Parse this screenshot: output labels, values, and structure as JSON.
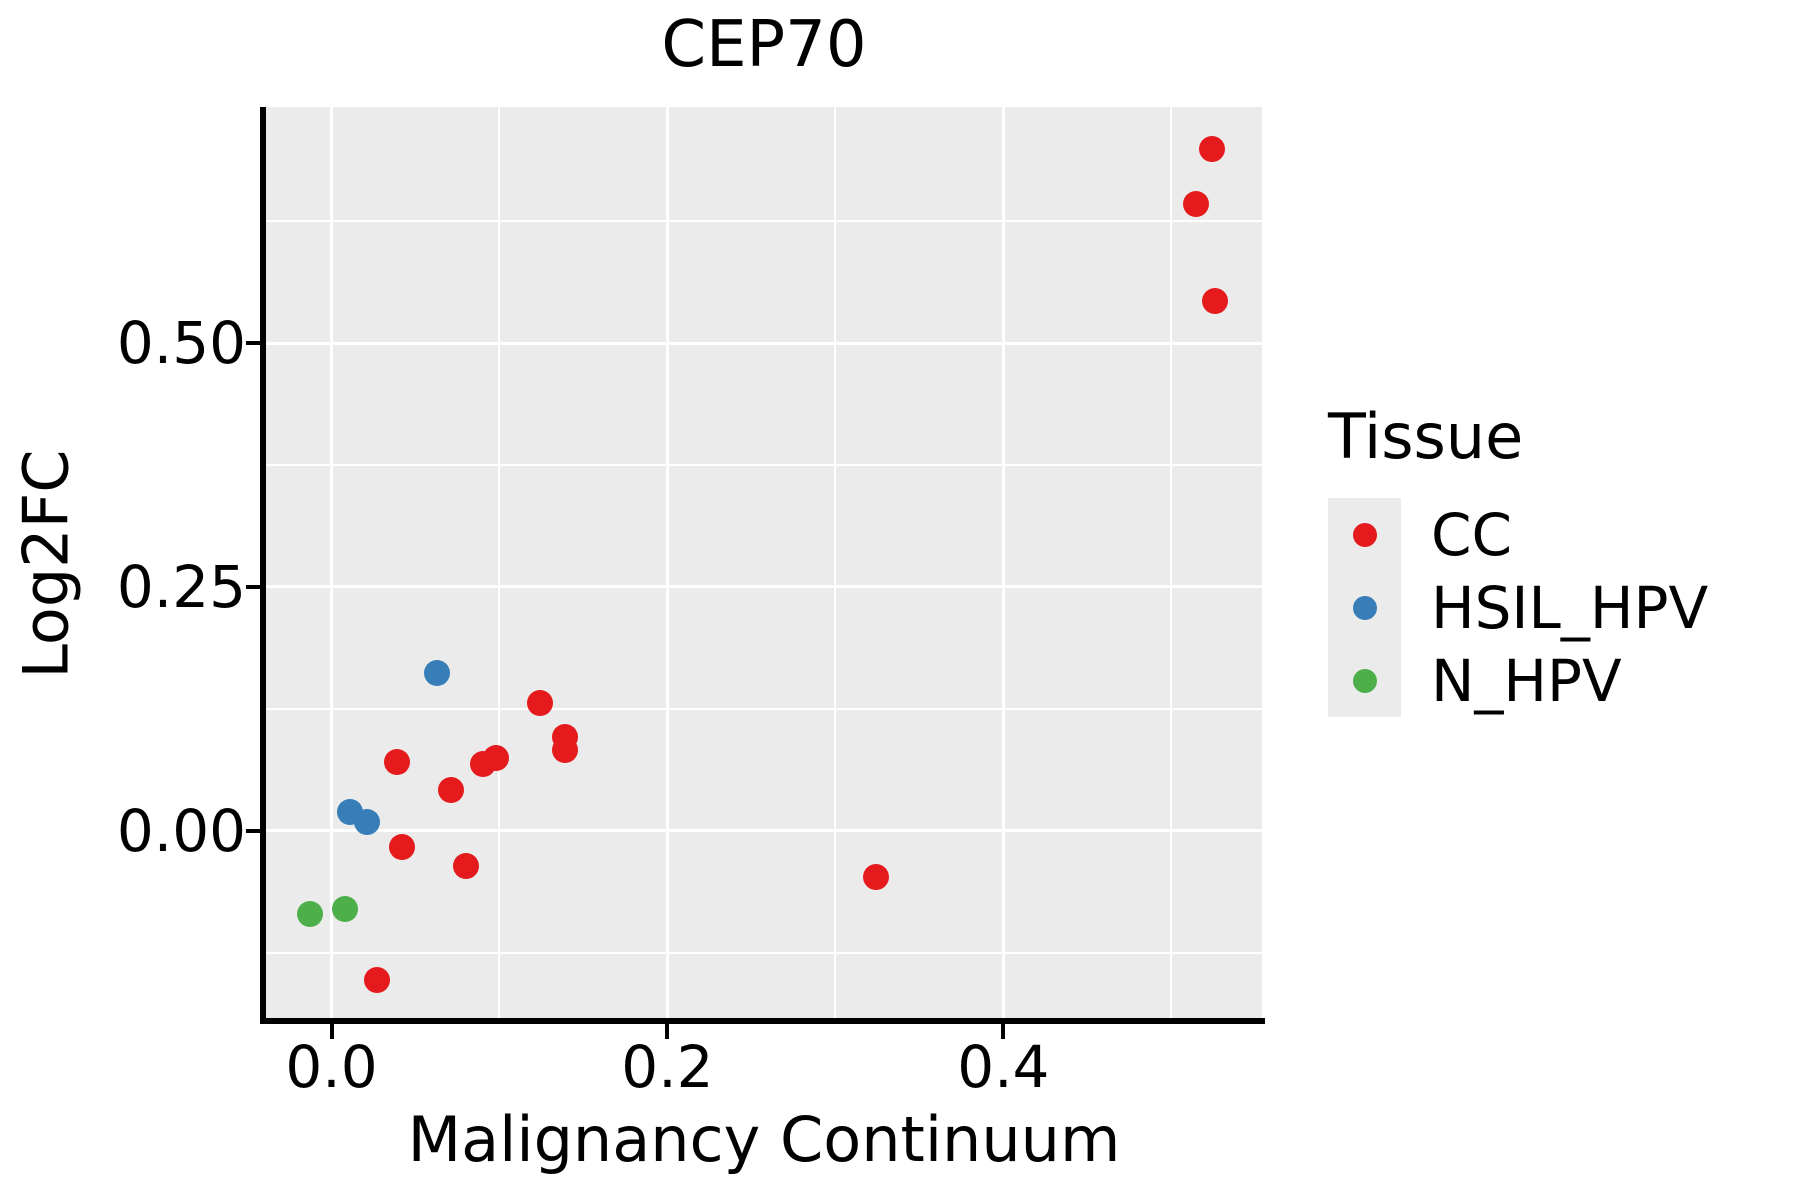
{
  "chart_data": {
    "type": "scatter",
    "title": "CEP70",
    "xlabel": "Malignancy Continuum",
    "ylabel": "Log2FC",
    "legend_title": "Tissue",
    "legend_position": "right",
    "grid": true,
    "panel_bg": "#EBEBEB",
    "grid_color": "#FFFFFF",
    "axis_color": "#000000",
    "xlim": [
      -0.039,
      0.554
    ],
    "ylim": [
      -0.195,
      0.742
    ],
    "x_ticks": {
      "values": [
        0.0,
        0.2,
        0.4
      ],
      "labels": [
        "0.0",
        "0.2",
        "0.4"
      ]
    },
    "y_ticks": {
      "values": [
        0.0,
        0.25,
        0.5
      ],
      "labels": [
        "0.00",
        "0.25",
        "0.50"
      ]
    },
    "x_minor": [
      0.1,
      0.3,
      0.5
    ],
    "y_minor": [
      -0.125,
      0.125,
      0.375,
      0.625
    ],
    "series": [
      {
        "name": "CC",
        "color": "#E41A1C",
        "points": [
          [
            0.039,
            0.071
          ],
          [
            0.071,
            0.042
          ],
          [
            0.09,
            0.068
          ],
          [
            0.098,
            0.075
          ],
          [
            0.124,
            0.131
          ],
          [
            0.139,
            0.096
          ],
          [
            0.139,
            0.083
          ],
          [
            0.042,
            -0.017
          ],
          [
            0.08,
            -0.036
          ],
          [
            0.027,
            -0.153
          ],
          [
            0.324,
            -0.047
          ],
          [
            0.524,
            0.699
          ],
          [
            0.515,
            0.643
          ],
          [
            0.526,
            0.543
          ]
        ]
      },
      {
        "name": "HSIL_HPV",
        "color": "#377EB8",
        "points": [
          [
            0.063,
            0.162
          ],
          [
            0.011,
            0.019
          ],
          [
            0.021,
            0.009
          ]
        ]
      },
      {
        "name": "N_HPV",
        "color": "#4DAF4A",
        "points": [
          [
            -0.013,
            -0.085
          ],
          [
            0.008,
            -0.08
          ]
        ]
      }
    ]
  }
}
